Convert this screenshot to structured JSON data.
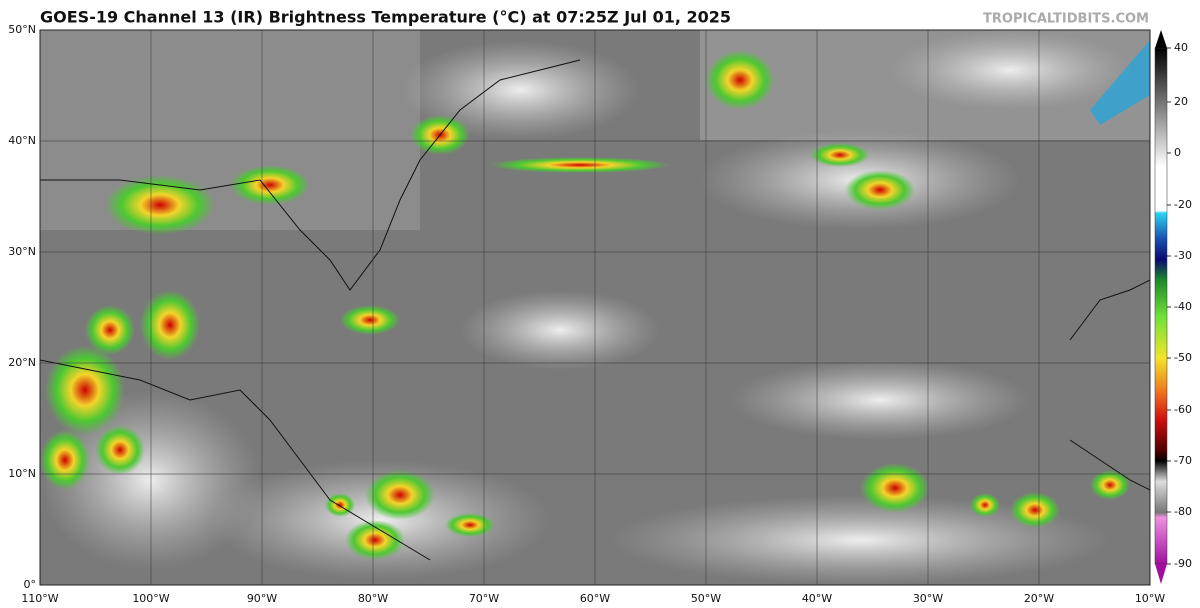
{
  "header": {
    "title": "GOES-19 Channel 13 (IR) Brightness Temperature (°C) at 07:25Z Jul 01, 2025",
    "credit": "TROPICALTIDBITS.COM"
  },
  "map": {
    "lat_labels": [
      "50°N",
      "40°N",
      "30°N",
      "20°N",
      "10°N",
      "0°"
    ],
    "lon_labels": [
      "110°W",
      "100°W",
      "90°W",
      "80°W",
      "70°W",
      "60°W",
      "50°W",
      "40°W",
      "30°W",
      "20°W",
      "10°W"
    ]
  },
  "colorbar": {
    "ticks": [
      "40",
      "20",
      "0",
      "-20",
      "-30",
      "-40",
      "-50",
      "-60",
      "-70",
      "-80",
      "-90"
    ]
  }
}
